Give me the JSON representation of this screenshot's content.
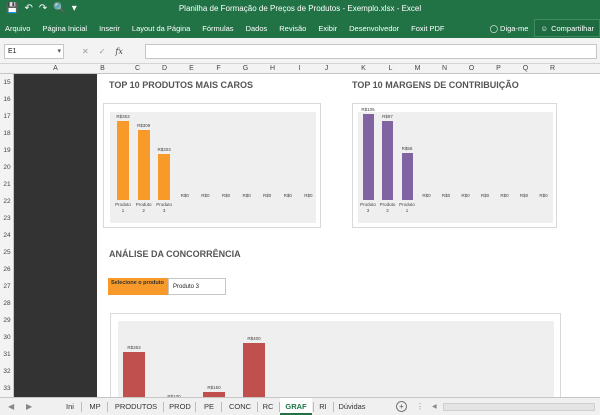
{
  "window": {
    "title": "Planilha de Formação de Preços de Produtos - Exemplo.xlsx - Excel"
  },
  "ribbon": {
    "tabs": [
      "Arquivo",
      "Página Inicial",
      "Inserir",
      "Layout da Página",
      "Fórmulas",
      "Dados",
      "Revisão",
      "Exibir",
      "Desenvolvedor",
      "Foxit PDF"
    ],
    "tell_me": "Diga-me",
    "share": "Compartilhar"
  },
  "formula_bar": {
    "name_box": "E1",
    "formula": ""
  },
  "columns": [
    "A",
    "B",
    "C",
    "D",
    "E",
    "F",
    "G",
    "H",
    "I",
    "J",
    "K",
    "L",
    "M",
    "N",
    "O",
    "P",
    "Q",
    "R"
  ],
  "rows": [
    "15",
    "16",
    "17",
    "18",
    "19",
    "20",
    "21",
    "22",
    "23",
    "24",
    "25",
    "26",
    "27",
    "28",
    "29",
    "30",
    "31",
    "32",
    "33"
  ],
  "sections": {
    "top_products": "TOP 10 PRODUTOS MAIS CAROS",
    "top_margins": "TOP 10 MARGENS DE CONTRIBUIÇÃO",
    "competition": "ANÁLISE DA CONCORRÊNCIA"
  },
  "selector": {
    "label": "Selecione o produto",
    "value": "Produto 3"
  },
  "colors": {
    "orange": "#f79a2a",
    "purple": "#8064a2",
    "red": "#c0504d",
    "excel_green": "#217346"
  },
  "chart_data": [
    {
      "type": "bar",
      "title": "",
      "categories": [
        "Produto 1",
        "Produto 2",
        "Produto 3",
        "",
        "",
        "",
        "",
        "",
        "",
        ""
      ],
      "values": [
        353,
        309,
        203,
        0,
        0,
        0,
        0,
        0,
        0,
        0
      ],
      "labels": [
        "R$353",
        "R$309",
        "R$203",
        "R$0",
        "R$0",
        "R$0",
        "R$0",
        "R$0",
        "R$0",
        "R$0"
      ],
      "ylim": [
        0,
        400
      ]
    },
    {
      "type": "bar",
      "title": "",
      "categories": [
        "Produto 3",
        "Produto 2",
        "Produto 1",
        "",
        "",
        "",
        "",
        "",
        "",
        ""
      ],
      "values": [
        105,
        97,
        58,
        0,
        0,
        0,
        0,
        0,
        0,
        0
      ],
      "labels": [
        "R$105",
        "R$97",
        "R$58",
        "R$0",
        "R$0",
        "R$0",
        "R$0",
        "R$0",
        "R$0",
        "R$0"
      ],
      "ylim": [
        0,
        115
      ]
    },
    {
      "type": "bar",
      "title": "",
      "categories": [
        "",
        "",
        "",
        ""
      ],
      "values": [
        353,
        100,
        150,
        400
      ],
      "labels": [
        "R$353",
        "R$100",
        "R$150",
        "R$400"
      ],
      "ylim": [
        0,
        460
      ]
    }
  ],
  "sheet_tabs": [
    "Ini",
    "MP",
    "PRODUTOS",
    "PROD",
    "PE",
    "CONC",
    "RC",
    "GRAF",
    "RI",
    "Dúvidas"
  ],
  "active_tab": "GRAF"
}
